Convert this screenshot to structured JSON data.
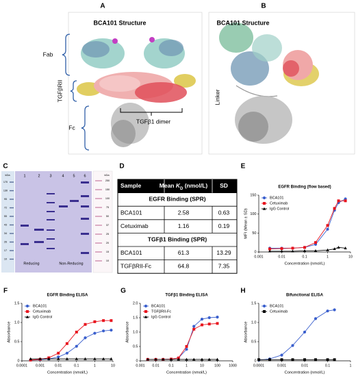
{
  "structures": [
    {
      "panel": "A",
      "title": "BCA101 Structure",
      "labels": [
        "Fab",
        "TGFβRII",
        "Fc",
        "TGFβ1 dimer"
      ]
    },
    {
      "panel": "B",
      "title": "BCA101 Structure",
      "labels": [
        "Linker"
      ]
    }
  ],
  "gel": {
    "panel": "C",
    "lanes": [
      "1",
      "2",
      "3",
      "4",
      "5",
      "6"
    ],
    "conditions": [
      "Reducing",
      "Non-Reducing"
    ],
    "left_markers": {
      "unit": "kDa",
      "values": [
        170,
        130,
        95,
        72,
        55,
        43,
        34,
        26,
        17,
        10
      ]
    },
    "right_markers": {
      "unit": "kDa",
      "values": [
        250,
        150,
        100,
        75,
        50,
        37,
        25,
        20,
        15,
        10
      ]
    }
  },
  "table": {
    "panel": "D",
    "header": [
      "Sample",
      [
        "Mean ",
        "K",
        "D",
        " (nmol/L)"
      ],
      "SD"
    ],
    "sections": [
      {
        "title": "EGFR Binding (SPR)",
        "rows": [
          [
            "BCA101",
            2.58,
            0.63
          ],
          [
            "Cetuximab",
            1.16,
            0.19
          ]
        ]
      },
      {
        "title": "TGFβ1 Binding (SPR)",
        "rows": [
          [
            "BCA101",
            61.3,
            13.29
          ],
          [
            "TGFβRII-Fc",
            64.8,
            7.35
          ]
        ]
      }
    ]
  },
  "chart_data": [
    {
      "type": "line",
      "panel": "E",
      "title": "EGFR Binding (flow based)",
      "x_label": "Concentration (nmol/L)",
      "y_label": "MFI (Mean ± SD)",
      "log_x": true,
      "legend": "upper-left",
      "x": [
        0.003,
        0.01,
        0.03,
        0.1,
        0.3,
        1,
        2,
        3,
        6
      ],
      "xlim": [
        0.001,
        10
      ],
      "xticks": [
        0.001,
        0.01,
        0.1,
        1,
        10
      ],
      "ylim": [
        0,
        150
      ],
      "yticks": [
        0,
        50,
        100,
        150
      ],
      "series": [
        {
          "name": "BCA101",
          "color": "#3a5fcd",
          "marker": "circle",
          "values": [
            10,
            10,
            10,
            12,
            20,
            60,
            110,
            130,
            140
          ]
        },
        {
          "name": "Cetuximab",
          "color": "#e8141e",
          "marker": "square",
          "values": [
            8,
            9,
            10,
            12,
            25,
            70,
            115,
            135,
            135
          ]
        },
        {
          "name": "IgG Control",
          "color": "#000000",
          "marker": "triangle",
          "values": [
            2,
            2,
            2,
            3,
            3,
            5,
            8,
            12,
            10
          ]
        }
      ]
    },
    {
      "type": "line",
      "panel": "F",
      "title": "EGFR Binding ELISA",
      "x_label": "Concentration (nmol/L)",
      "y_label": "Absorbance",
      "log_x": true,
      "legend": "upper-left",
      "x": [
        0.0003,
        0.001,
        0.003,
        0.01,
        0.03,
        0.1,
        0.3,
        1,
        3,
        8
      ],
      "xlim": [
        0.0001,
        10
      ],
      "xticks": [
        0.0001,
        0.001,
        0.01,
        0.1,
        1,
        10
      ],
      "ylim": [
        0,
        1.5
      ],
      "yticks": [
        0,
        0.5,
        {
          "value": 1,
          "label": "1.0"
        },
        1.5
      ],
      "series": [
        {
          "name": "BCA101",
          "color": "#3a5fcd",
          "marker": "circle",
          "values": [
            0.02,
            0.03,
            0.05,
            0.1,
            0.2,
            0.38,
            0.6,
            0.72,
            0.78,
            0.8
          ]
        },
        {
          "name": "Cetuximab",
          "color": "#e8141e",
          "marker": "square",
          "values": [
            0.02,
            0.04,
            0.08,
            0.2,
            0.45,
            0.75,
            0.95,
            1.02,
            1.05,
            1.05
          ]
        },
        {
          "name": "IgG Control",
          "color": "#000000",
          "marker": "triangle",
          "values": [
            0.05,
            0.05,
            0.05,
            0.05,
            0.05,
            0.05,
            0.05,
            0.05,
            0.05,
            0.05
          ]
        }
      ]
    },
    {
      "type": "line",
      "panel": "G",
      "title": "TGFβ1 Binding ELISA",
      "x_label": "Concentration (nmol/L)",
      "y_label": "Absorbance",
      "log_x": true,
      "legend": "upper-left",
      "x": [
        0.003,
        0.01,
        0.03,
        0.1,
        0.3,
        1,
        3,
        10,
        30,
        100
      ],
      "xlim": [
        0.001,
        1000
      ],
      "xticks": [
        0.001,
        0.01,
        0.1,
        1,
        10,
        100,
        1000
      ],
      "ylim": [
        0,
        2
      ],
      "yticks": [
        0,
        0.5,
        {
          "value": 1,
          "label": "1.0"
        },
        1.5,
        {
          "value": 2,
          "label": "2.0"
        }
      ],
      "series": [
        {
          "name": "BCA101",
          "color": "#3a5fcd",
          "marker": "circle",
          "values": [
            0.05,
            0.05,
            0.05,
            0.06,
            0.1,
            0.4,
            1.2,
            1.45,
            1.5,
            1.52
          ]
        },
        {
          "name": "TGFβRII-Fc",
          "color": "#e8141e",
          "marker": "square",
          "values": [
            0.05,
            0.05,
            0.05,
            0.06,
            0.1,
            0.5,
            1.1,
            1.25,
            1.28,
            1.3
          ]
        },
        {
          "name": "IgG Control",
          "color": "#000000",
          "marker": "triangle",
          "values": [
            0.05,
            0.05,
            0.05,
            0.05,
            0.05,
            0.05,
            0.05,
            0.05,
            0.05,
            0.05
          ]
        }
      ]
    },
    {
      "type": "line",
      "panel": "H",
      "title": "Bifunctional ELISA",
      "x_label": "Concentration (nmol/L)",
      "y_label": "Absorbance",
      "log_x": true,
      "legend": "upper-left",
      "x": [
        0.0001,
        0.0003,
        0.001,
        0.003,
        0.01,
        0.03,
        0.1,
        0.2
      ],
      "xlim": [
        0.0001,
        1
      ],
      "xticks": [
        0.0001,
        0.001,
        0.01,
        0.1,
        1
      ],
      "ylim": [
        0,
        1.5
      ],
      "yticks": [
        0,
        0.5,
        {
          "value": 1,
          "label": "1.0"
        },
        1.5
      ],
      "series": [
        {
          "name": "BCA101",
          "color": "#3a5fcd",
          "marker": "circle",
          "values": [
            0.02,
            0.05,
            0.15,
            0.4,
            0.75,
            1.1,
            1.3,
            1.33
          ]
        },
        {
          "name": "Cetuximab",
          "color": "#000000",
          "marker": "square",
          "values": [
            0.03,
            0.03,
            0.03,
            0.03,
            0.03,
            0.03,
            0.03,
            0.03
          ]
        }
      ]
    }
  ]
}
